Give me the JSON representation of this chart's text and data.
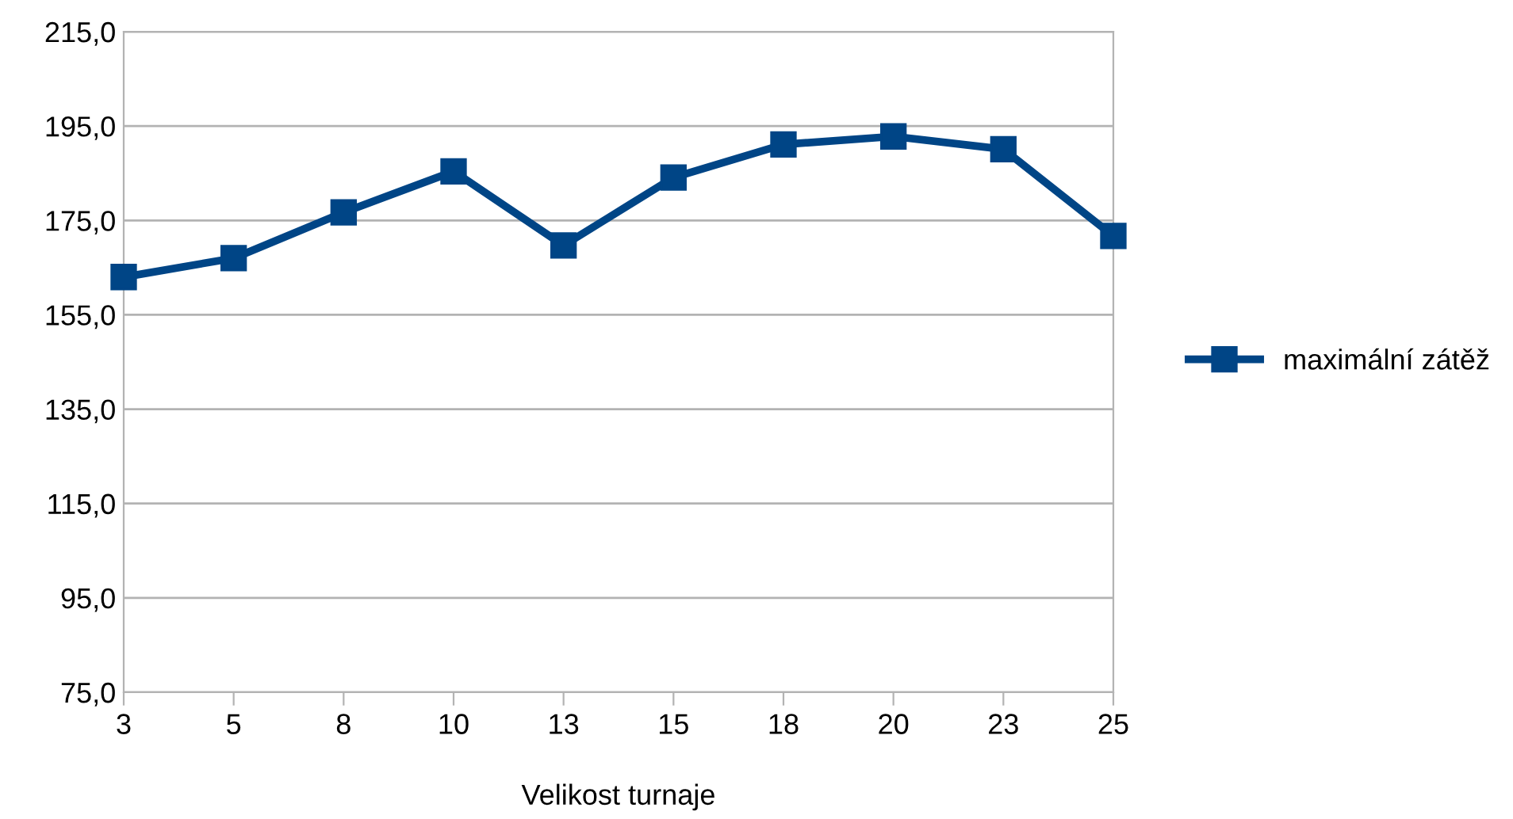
{
  "chart_data": {
    "type": "line",
    "xlabel": "Velikost turnaje",
    "categories": [
      "3",
      "5",
      "8",
      "10",
      "13",
      "15",
      "18",
      "20",
      "23",
      "25"
    ],
    "series": [
      {
        "name": "maximální zátěž",
        "color": "#004586",
        "values": [
          163.0,
          167.0,
          176.7,
          185.4,
          169.7,
          184.1,
          191.1,
          192.8,
          190.1,
          171.7
        ]
      }
    ],
    "ylim": [
      75,
      215
    ],
    "yticks": [
      {
        "value": 75,
        "label": "75,0"
      },
      {
        "value": 95,
        "label": "95,0"
      },
      {
        "value": 115,
        "label": "115,0"
      },
      {
        "value": 135,
        "label": "135,0"
      },
      {
        "value": 155,
        "label": "155,0"
      },
      {
        "value": 175,
        "label": "175,0"
      },
      {
        "value": 195,
        "label": "195,0"
      },
      {
        "value": 215,
        "label": "215,0"
      }
    ],
    "grid": "y",
    "legend": "right",
    "marker": "square",
    "line_style": "solid"
  }
}
